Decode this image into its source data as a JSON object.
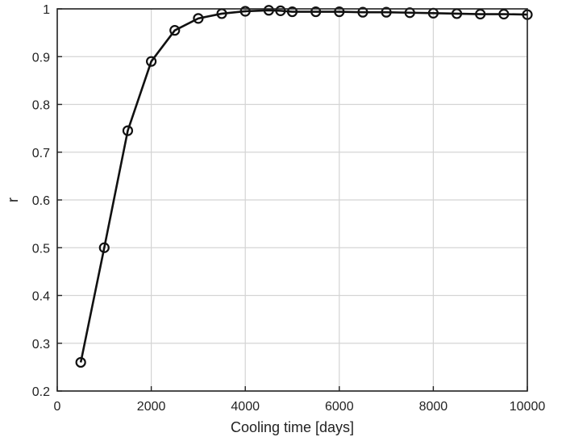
{
  "chart_data": {
    "type": "line",
    "title": "",
    "xlabel": "Cooling time [days]",
    "ylabel": "r",
    "xlim": [
      0,
      10000
    ],
    "ylim": [
      0.2,
      1
    ],
    "xticks": [
      0,
      2000,
      4000,
      6000,
      8000,
      10000
    ],
    "yticks": [
      0.2,
      0.3,
      0.4,
      0.5,
      0.6,
      0.7,
      0.8,
      0.9,
      1
    ],
    "xtick_labels": [
      "0",
      "2000",
      "4000",
      "6000",
      "8000",
      "10000"
    ],
    "ytick_labels": [
      "0.2",
      "0.3",
      "0.4",
      "0.5",
      "0.6",
      "0.7",
      "0.8",
      "0.9",
      "1"
    ],
    "grid": true,
    "legend": "none",
    "series": [
      {
        "marker": "open-circle",
        "color": "#111111",
        "x": [
          500,
          1000,
          1500,
          2000,
          2500,
          3000,
          3500,
          4000,
          4500,
          4750,
          5000,
          5500,
          6000,
          6500,
          7000,
          7500,
          8000,
          8500,
          9000,
          9500,
          10000
        ],
        "y": [
          0.26,
          0.5,
          0.745,
          0.89,
          0.955,
          0.98,
          0.99,
          0.995,
          0.997,
          0.996,
          0.994,
          0.994,
          0.994,
          0.993,
          0.993,
          0.992,
          0.991,
          0.99,
          0.989,
          0.989,
          0.988
        ]
      }
    ]
  }
}
